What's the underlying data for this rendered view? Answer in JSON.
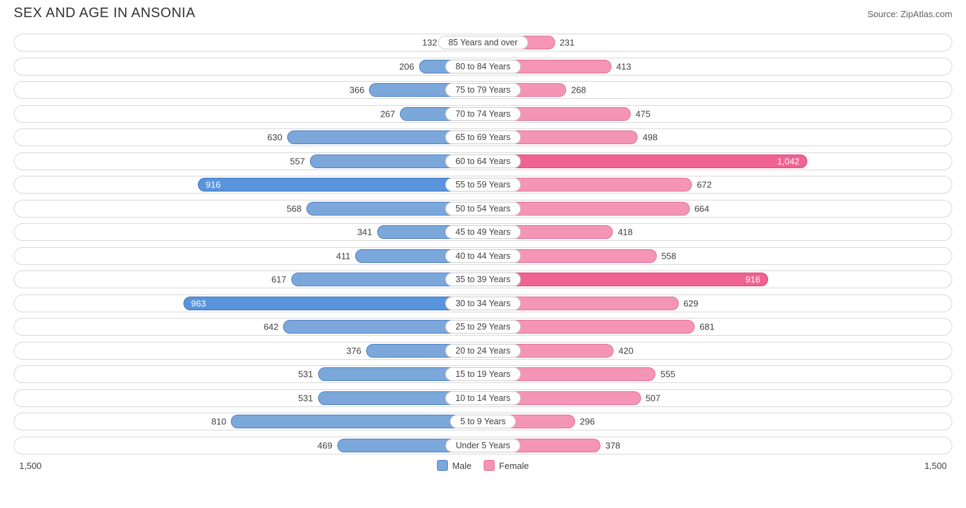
{
  "title": "SEX AND AGE IN ANSONIA",
  "source": "Source: ZipAtlas.com",
  "axis_max": 1500,
  "axis_label_left": "1,500",
  "axis_label_right": "1,500",
  "colors": {
    "male_fill": "#7ba7db",
    "male_border": "#4f82c4",
    "male_highlight_fill": "#5a94dd",
    "male_highlight_border": "#3d72b8",
    "female_fill": "#f495b6",
    "female_border": "#e56f97",
    "female_highlight_fill": "#f06292",
    "female_highlight_border": "#d94a7a",
    "row_border": "#d8d8d8",
    "text": "#404040",
    "title_text": "#333333",
    "source_text": "#606060",
    "background": "#ffffff"
  },
  "legend": {
    "male": "Male",
    "female": "Female"
  },
  "rows": [
    {
      "label": "85 Years and over",
      "male": 132,
      "female": 231,
      "male_hl": false,
      "female_hl": false
    },
    {
      "label": "80 to 84 Years",
      "male": 206,
      "female": 413,
      "male_hl": false,
      "female_hl": false
    },
    {
      "label": "75 to 79 Years",
      "male": 366,
      "female": 268,
      "male_hl": false,
      "female_hl": false
    },
    {
      "label": "70 to 74 Years",
      "male": 267,
      "female": 475,
      "male_hl": false,
      "female_hl": false
    },
    {
      "label": "65 to 69 Years",
      "male": 630,
      "female": 498,
      "male_hl": false,
      "female_hl": false
    },
    {
      "label": "60 to 64 Years",
      "male": 557,
      "female": 1042,
      "male_hl": false,
      "female_hl": true,
      "female_display": "1,042"
    },
    {
      "label": "55 to 59 Years",
      "male": 916,
      "female": 672,
      "male_hl": true,
      "female_hl": false
    },
    {
      "label": "50 to 54 Years",
      "male": 568,
      "female": 664,
      "male_hl": false,
      "female_hl": false
    },
    {
      "label": "45 to 49 Years",
      "male": 341,
      "female": 418,
      "male_hl": false,
      "female_hl": false
    },
    {
      "label": "40 to 44 Years",
      "male": 411,
      "female": 558,
      "male_hl": false,
      "female_hl": false
    },
    {
      "label": "35 to 39 Years",
      "male": 617,
      "female": 916,
      "male_hl": false,
      "female_hl": true
    },
    {
      "label": "30 to 34 Years",
      "male": 963,
      "female": 629,
      "male_hl": true,
      "female_hl": false
    },
    {
      "label": "25 to 29 Years",
      "male": 642,
      "female": 681,
      "male_hl": false,
      "female_hl": false
    },
    {
      "label": "20 to 24 Years",
      "male": 376,
      "female": 420,
      "male_hl": false,
      "female_hl": false
    },
    {
      "label": "15 to 19 Years",
      "male": 531,
      "female": 555,
      "male_hl": false,
      "female_hl": false
    },
    {
      "label": "10 to 14 Years",
      "male": 531,
      "female": 507,
      "male_hl": false,
      "female_hl": false
    },
    {
      "label": "5 to 9 Years",
      "male": 810,
      "female": 296,
      "male_hl": false,
      "female_hl": false
    },
    {
      "label": "Under 5 Years",
      "male": 469,
      "female": 378,
      "male_hl": false,
      "female_hl": false
    }
  ]
}
